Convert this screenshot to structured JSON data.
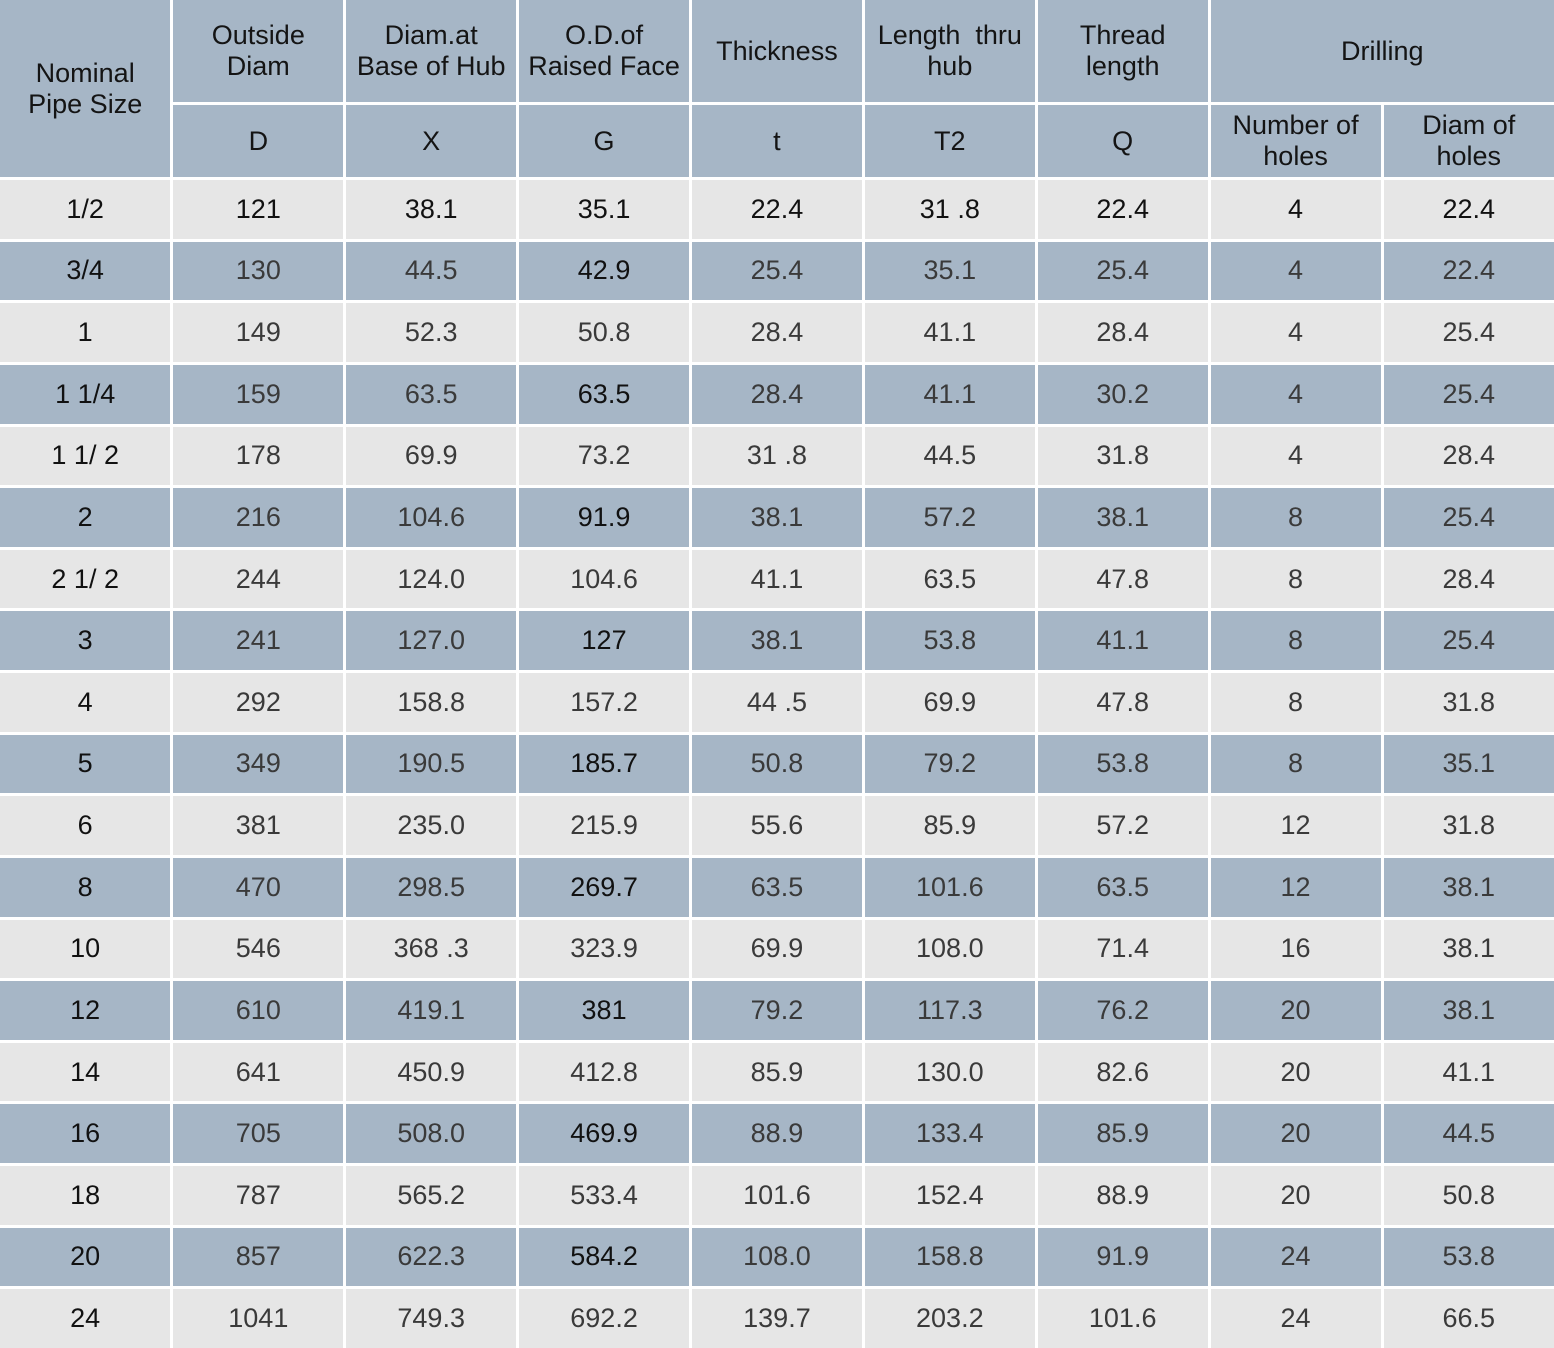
{
  "table": {
    "headers": {
      "nominal": [
        "Nominal",
        "Pipe Size"
      ],
      "outside_diam": [
        "Outside",
        "Diam"
      ],
      "diam_base_hub": [
        "Diam.at",
        "Base of Hub"
      ],
      "od_raised_face": [
        "O.D.of",
        "Raised Face"
      ],
      "thickness": [
        "Thickness"
      ],
      "length_thru_hub": [
        "Length  thru",
        "hub"
      ],
      "thread_length": [
        "Thread",
        "length"
      ],
      "drilling": [
        "Drilling"
      ],
      "number_of_holes": [
        "Number of",
        "holes"
      ],
      "diam_of_holes": [
        "Diam of",
        "holes"
      ]
    },
    "symbols": [
      "D",
      "X",
      "G",
      "t",
      "T2",
      "Q"
    ],
    "rows": [
      [
        "1/2",
        "121",
        "38.1",
        "35.1",
        "22.4",
        "31 .8",
        "22.4",
        "4",
        "22.4"
      ],
      [
        "3/4",
        "130",
        "44.5",
        "42.9",
        "25.4",
        "35.1",
        "25.4",
        "4",
        "22.4"
      ],
      [
        "1",
        "149",
        "52.3",
        "50.8",
        "28.4",
        "41.1",
        "28.4",
        "4",
        "25.4"
      ],
      [
        "1 1/4",
        "159",
        "63.5",
        "63.5",
        "28.4",
        "41.1",
        "30.2",
        "4",
        "25.4"
      ],
      [
        "1 1/ 2",
        "178",
        "69.9",
        "73.2",
        "31 .8",
        "44.5",
        "31.8",
        "4",
        "28.4"
      ],
      [
        "2",
        "216",
        "104.6",
        "91.9",
        "38.1",
        "57.2",
        "38.1",
        "8",
        "25.4"
      ],
      [
        "2 1/ 2",
        "244",
        "124.0",
        "104.6",
        "41.1",
        "63.5",
        "47.8",
        "8",
        "28.4"
      ],
      [
        "3",
        "241",
        "127.0",
        "127",
        "38.1",
        "53.8",
        "41.1",
        "8",
        "25.4"
      ],
      [
        "4",
        "292",
        "158.8",
        "157.2",
        "44 .5",
        "69.9",
        "47.8",
        "8",
        "31.8"
      ],
      [
        "5",
        "349",
        "190.5",
        "185.7",
        "50.8",
        "79.2",
        "53.8",
        "8",
        "35.1"
      ],
      [
        "6",
        "381",
        "235.0",
        "215.9",
        "55.6",
        "85.9",
        "57.2",
        "12",
        "31.8"
      ],
      [
        "8",
        "470",
        "298.5",
        "269.7",
        "63.5",
        "101.6",
        "63.5",
        "12",
        "38.1"
      ],
      [
        "10",
        "546",
        "368 .3",
        "323.9",
        "69.9",
        "108.0",
        "71.4",
        "16",
        "38.1"
      ],
      [
        "12",
        "610",
        "419.1",
        "381",
        "79.2",
        "117.3",
        "76.2",
        "20",
        "38.1"
      ],
      [
        "14",
        "641",
        "450.9",
        "412.8",
        "85.9",
        "130.0",
        "82.6",
        "20",
        "41.1"
      ],
      [
        "16",
        "705",
        "508.0",
        "469.9",
        "88.9",
        "133.4",
        "85.9",
        "20",
        "44.5"
      ],
      [
        "18",
        "787",
        "565.2",
        "533.4",
        "101.6",
        "152.4",
        "88.9",
        "20",
        "50.8"
      ],
      [
        "20",
        "857",
        "622.3",
        "584.2",
        "108.0",
        "158.8",
        "91.9",
        "24",
        "53.8"
      ],
      [
        "24",
        "1041",
        "749.3",
        "692.2",
        "139.7",
        "203.2",
        "101.6",
        "24",
        "66.5"
      ]
    ]
  },
  "colors": {
    "header_bg": "#a6b6c6",
    "row_light": "#e6e6e6",
    "row_dark": "#a6b6c6",
    "grid_line": "#ffffff"
  }
}
